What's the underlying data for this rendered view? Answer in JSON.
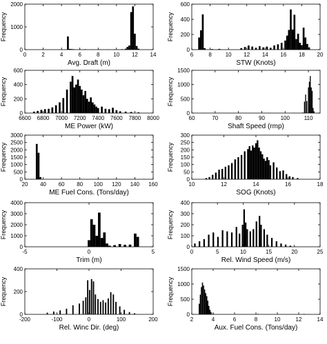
{
  "chart_data": [
    {
      "type": "bar",
      "xlabel": "Avg. Draft (m)",
      "ylabel": "Frequency",
      "xlim": [
        0,
        14
      ],
      "ylim": [
        0,
        2000
      ],
      "xticks": [
        0,
        2,
        4,
        6,
        8,
        10,
        12,
        14
      ],
      "yticks": [
        0,
        1000,
        2000
      ],
      "binwidth": 0.2,
      "bins": [
        [
          4.7,
          580
        ],
        [
          4.9,
          30
        ],
        [
          5.1,
          25
        ],
        [
          5.3,
          20
        ],
        [
          6.0,
          15
        ],
        [
          6.6,
          18
        ],
        [
          7.4,
          10
        ],
        [
          8.2,
          12
        ],
        [
          9.0,
          10
        ],
        [
          9.8,
          15
        ],
        [
          10.6,
          20
        ],
        [
          11.0,
          40
        ],
        [
          11.2,
          120
        ],
        [
          11.4,
          180
        ],
        [
          11.6,
          1650
        ],
        [
          11.8,
          1900
        ],
        [
          12.0,
          700
        ],
        [
          12.2,
          160
        ],
        [
          12.4,
          40
        ]
      ]
    },
    {
      "type": "bar",
      "xlabel": "STW (Knots)",
      "ylabel": "Frequency",
      "xlim": [
        6,
        20
      ],
      "ylim": [
        0,
        600
      ],
      "xticks": [
        6,
        8,
        10,
        12,
        14,
        16,
        18,
        20
      ],
      "yticks": [
        0,
        200,
        400,
        600
      ],
      "binwidth": 0.2,
      "bins": [
        [
          6.8,
          160
        ],
        [
          7.0,
          255
        ],
        [
          7.2,
          465
        ],
        [
          7.4,
          20
        ],
        [
          8.2,
          8
        ],
        [
          9.0,
          10
        ],
        [
          11.4,
          20
        ],
        [
          11.8,
          35
        ],
        [
          12.2,
          55
        ],
        [
          12.6,
          40
        ],
        [
          13.0,
          25
        ],
        [
          13.4,
          45
        ],
        [
          13.8,
          30
        ],
        [
          14.2,
          40
        ],
        [
          14.6,
          25
        ],
        [
          15.0,
          55
        ],
        [
          15.4,
          70
        ],
        [
          15.8,
          90
        ],
        [
          16.2,
          120
        ],
        [
          16.4,
          185
        ],
        [
          16.6,
          260
        ],
        [
          16.8,
          530
        ],
        [
          17.0,
          265
        ],
        [
          17.2,
          460
        ],
        [
          17.4,
          140
        ],
        [
          17.6,
          210
        ],
        [
          17.8,
          90
        ],
        [
          18.0,
          60
        ],
        [
          18.2,
          290
        ],
        [
          18.4,
          160
        ],
        [
          18.6,
          75
        ],
        [
          18.8,
          30
        ]
      ]
    },
    {
      "type": "bar",
      "xlabel": "ME Power (kW)",
      "ylabel": "Frequency",
      "xlim": [
        6600,
        8000
      ],
      "ylim": [
        0,
        600
      ],
      "xticks": [
        6600,
        6800,
        7000,
        7200,
        7400,
        7600,
        7800,
        8000
      ],
      "yticks": [
        0,
        200,
        400,
        600
      ],
      "binwidth": 20,
      "bins": [
        [
          6700,
          20
        ],
        [
          6740,
          30
        ],
        [
          6780,
          45
        ],
        [
          6820,
          55
        ],
        [
          6860,
          60
        ],
        [
          6900,
          80
        ],
        [
          6940,
          110
        ],
        [
          6980,
          150
        ],
        [
          7020,
          210
        ],
        [
          7060,
          330
        ],
        [
          7100,
          440
        ],
        [
          7120,
          520
        ],
        [
          7140,
          360
        ],
        [
          7160,
          400
        ],
        [
          7180,
          470
        ],
        [
          7200,
          380
        ],
        [
          7220,
          330
        ],
        [
          7240,
          250
        ],
        [
          7260,
          310
        ],
        [
          7280,
          200
        ],
        [
          7300,
          160
        ],
        [
          7320,
          220
        ],
        [
          7340,
          150
        ],
        [
          7360,
          120
        ],
        [
          7380,
          90
        ],
        [
          7400,
          70
        ],
        [
          7440,
          90
        ],
        [
          7480,
          60
        ],
        [
          7520,
          55
        ],
        [
          7560,
          75
        ],
        [
          7600,
          40
        ],
        [
          7640,
          25
        ],
        [
          7700,
          20
        ],
        [
          7760,
          15
        ],
        [
          7840,
          10
        ]
      ]
    },
    {
      "type": "bar",
      "xlabel": "Shaft Speed (rmp)",
      "ylabel": "Frequency",
      "xlim": [
        60,
        115
      ],
      "ylim": [
        0,
        1500
      ],
      "xticks": [
        60,
        70,
        80,
        90,
        100,
        110
      ],
      "yticks": [
        0,
        500,
        1000,
        1500
      ],
      "binwidth": 0.4,
      "bins": [
        [
          65.5,
          8
        ],
        [
          72,
          5
        ],
        [
          80,
          6
        ],
        [
          86,
          5
        ],
        [
          93,
          6
        ],
        [
          99,
          5
        ],
        [
          104,
          8
        ],
        [
          107.5,
          20
        ],
        [
          108.3,
          400
        ],
        [
          108.8,
          650
        ],
        [
          109.3,
          420
        ],
        [
          110.0,
          900
        ],
        [
          110.4,
          1100
        ],
        [
          110.8,
          1300
        ],
        [
          111.2,
          900
        ],
        [
          111.6,
          780
        ],
        [
          112.0,
          180
        ],
        [
          112.4,
          60
        ]
      ]
    },
    {
      "type": "bar",
      "xlabel": "ME Fuel Cons. (Tons/day)",
      "ylabel": "Frequency",
      "xlim": [
        20,
        160
      ],
      "ylim": [
        0,
        3000
      ],
      "xticks": [
        20,
        40,
        60,
        80,
        100,
        120,
        140,
        160
      ],
      "yticks": [
        0,
        500,
        1000,
        1500,
        2000,
        2500,
        3000
      ],
      "binwidth": 2,
      "bins": [
        [
          33,
          2400
        ],
        [
          35,
          1800
        ],
        [
          37,
          150
        ],
        [
          60,
          10
        ],
        [
          100,
          8
        ],
        [
          140,
          15
        ],
        [
          150,
          20
        ]
      ]
    },
    {
      "type": "bar",
      "xlabel": "SOG (Knots)",
      "ylabel": "Frequency",
      "xlim": [
        10,
        18
      ],
      "ylim": [
        0,
        300
      ],
      "xticks": [
        10,
        12,
        14,
        16,
        18
      ],
      "yticks": [
        0,
        50,
        100,
        150,
        200,
        250,
        300
      ],
      "binwidth": 0.1,
      "bins": [
        [
          10.9,
          8
        ],
        [
          11.1,
          15
        ],
        [
          11.3,
          30
        ],
        [
          11.5,
          45
        ],
        [
          11.7,
          65
        ],
        [
          11.9,
          70
        ],
        [
          12.1,
          85
        ],
        [
          12.3,
          95
        ],
        [
          12.5,
          110
        ],
        [
          12.7,
          135
        ],
        [
          12.9,
          150
        ],
        [
          13.1,
          165
        ],
        [
          13.3,
          190
        ],
        [
          13.5,
          205
        ],
        [
          13.6,
          225
        ],
        [
          13.7,
          195
        ],
        [
          13.8,
          230
        ],
        [
          13.9,
          215
        ],
        [
          14.0,
          245
        ],
        [
          14.1,
          265
        ],
        [
          14.2,
          215
        ],
        [
          14.3,
          190
        ],
        [
          14.4,
          170
        ],
        [
          14.5,
          140
        ],
        [
          14.6,
          125
        ],
        [
          14.7,
          150
        ],
        [
          14.8,
          130
        ],
        [
          14.9,
          95
        ],
        [
          15.1,
          115
        ],
        [
          15.3,
          80
        ],
        [
          15.5,
          55
        ],
        [
          15.7,
          60
        ],
        [
          15.9,
          35
        ],
        [
          16.1,
          20
        ],
        [
          16.3,
          15
        ],
        [
          16.6,
          8
        ]
      ]
    },
    {
      "type": "bar",
      "xlabel": "Trim (m)",
      "ylabel": "Frequency",
      "xlim": [
        -5,
        5
      ],
      "ylim": [
        0,
        4000
      ],
      "xticks": [
        -5,
        0,
        5
      ],
      "yticks": [
        0,
        1000,
        2000,
        3000,
        4000
      ],
      "binwidth": 0.2,
      "bins": [
        [
          0.0,
          600
        ],
        [
          0.2,
          2500
        ],
        [
          0.4,
          2000
        ],
        [
          0.6,
          1000
        ],
        [
          0.8,
          3100
        ],
        [
          1.0,
          800
        ],
        [
          1.2,
          1300
        ],
        [
          1.4,
          300
        ],
        [
          1.6,
          100
        ],
        [
          2.0,
          150
        ],
        [
          2.4,
          250
        ],
        [
          2.8,
          180
        ],
        [
          3.2,
          200
        ],
        [
          3.6,
          1200
        ],
        [
          3.8,
          900
        ]
      ]
    },
    {
      "type": "bar",
      "xlabel": "Rel. Wind Speed (m/s)",
      "ylabel": "Frequency",
      "xlim": [
        0,
        25
      ],
      "ylim": [
        0,
        400
      ],
      "xticks": [
        0,
        5,
        10,
        15,
        20,
        25
      ],
      "yticks": [
        0,
        100,
        200,
        300,
        400
      ],
      "binwidth": 0.3,
      "bins": [
        [
          0.6,
          30
        ],
        [
          1.5,
          50
        ],
        [
          2.4,
          70
        ],
        [
          3.3,
          110
        ],
        [
          4.2,
          130
        ],
        [
          5.1,
          90
        ],
        [
          6.0,
          150
        ],
        [
          6.9,
          140
        ],
        [
          7.8,
          130
        ],
        [
          8.7,
          180
        ],
        [
          9.3,
          120
        ],
        [
          9.9,
          200
        ],
        [
          10.2,
          340
        ],
        [
          10.5,
          220
        ],
        [
          10.8,
          160
        ],
        [
          11.4,
          140
        ],
        [
          12.0,
          160
        ],
        [
          12.6,
          230
        ],
        [
          13.2,
          280
        ],
        [
          13.5,
          200
        ],
        [
          14.1,
          160
        ],
        [
          14.7,
          110
        ],
        [
          15.6,
          80
        ],
        [
          16.5,
          50
        ],
        [
          17.4,
          30
        ],
        [
          18.3,
          20
        ],
        [
          19.2,
          10
        ]
      ]
    },
    {
      "type": "bar",
      "xlabel": "Rel. Winc Dir. (deg)",
      "ylabel": "Frequency",
      "xlim": [
        -200,
        200
      ],
      "ylim": [
        0,
        400
      ],
      "xticks": [
        -200,
        -100,
        0,
        100,
        200
      ],
      "yticks": [
        0,
        200,
        400
      ],
      "binwidth": 4,
      "bins": [
        [
          -130,
          15
        ],
        [
          -110,
          25
        ],
        [
          -90,
          35
        ],
        [
          -70,
          50
        ],
        [
          -50,
          80
        ],
        [
          -30,
          95
        ],
        [
          -18,
          120
        ],
        [
          -10,
          150
        ],
        [
          -4,
          300
        ],
        [
          2,
          215
        ],
        [
          8,
          310
        ],
        [
          14,
          290
        ],
        [
          20,
          175
        ],
        [
          28,
          135
        ],
        [
          36,
          110
        ],
        [
          44,
          125
        ],
        [
          52,
          105
        ],
        [
          60,
          140
        ],
        [
          68,
          195
        ],
        [
          76,
          175
        ],
        [
          84,
          110
        ],
        [
          96,
          70
        ],
        [
          110,
          40
        ],
        [
          126,
          20
        ],
        [
          142,
          10
        ]
      ]
    },
    {
      "type": "bar",
      "xlabel": "Aux. Fuel Cons. (Tons/day)",
      "ylabel": "Frequency",
      "xlim": [
        2,
        14
      ],
      "ylim": [
        0,
        1500
      ],
      "xticks": [
        2,
        4,
        6,
        8,
        10,
        12,
        14
      ],
      "yticks": [
        0,
        500,
        1000,
        1500
      ],
      "binwidth": 0.1,
      "bins": [
        [
          2.7,
          350
        ],
        [
          2.8,
          650
        ],
        [
          2.9,
          900
        ],
        [
          3.0,
          1050
        ],
        [
          3.1,
          950
        ],
        [
          3.2,
          820
        ],
        [
          3.3,
          700
        ],
        [
          3.4,
          600
        ],
        [
          3.5,
          450
        ],
        [
          3.6,
          280
        ],
        [
          3.7,
          150
        ],
        [
          3.8,
          80
        ],
        [
          4.0,
          30
        ],
        [
          8.2,
          15
        ],
        [
          12.5,
          15
        ]
      ]
    }
  ]
}
